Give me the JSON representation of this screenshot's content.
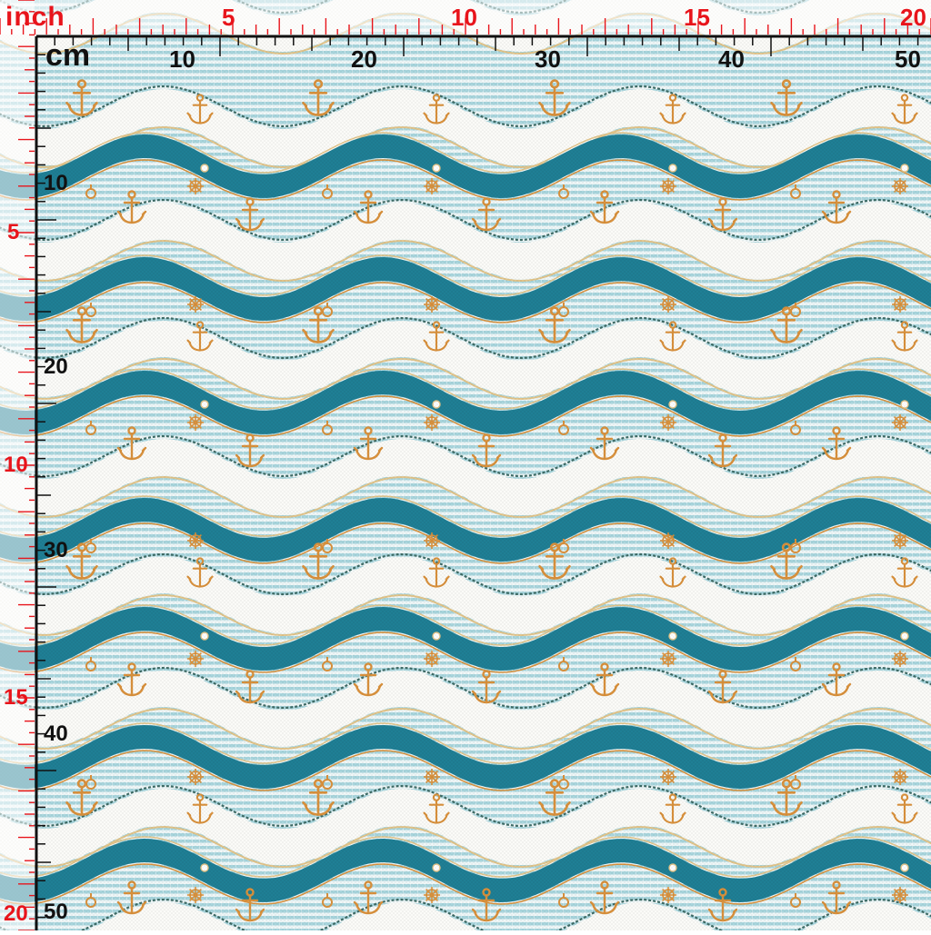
{
  "measurement_overlay": {
    "inch_unit_label": "inch",
    "cm_unit_label": "cm",
    "inch_top_labels": [
      "5",
      "10",
      "15",
      "20"
    ],
    "cm_top_labels": [
      "10",
      "20",
      "30",
      "40",
      "50"
    ],
    "inch_left_labels": [
      "5",
      "10",
      "15",
      "20"
    ],
    "cm_left_labels": [
      "10",
      "20",
      "30",
      "40",
      "50"
    ]
  },
  "pattern": {
    "motifs": [
      "wave-band-icon",
      "anchor-icon",
      "ship-wheel-icon",
      "rope-ring-icon",
      "rope-border-icon",
      "pearl-icon"
    ],
    "colors": {
      "teal_band": "#1f7f95",
      "stripe_light": "#a9d6de",
      "stripe_white": "#eef7f8",
      "white_wave": "#fbfbf8",
      "gold": "#d9913c",
      "rope": "#3d6b66",
      "gold_outline": "#e2c489",
      "inch_red": "#e8141b",
      "cm_black": "#111111"
    }
  }
}
